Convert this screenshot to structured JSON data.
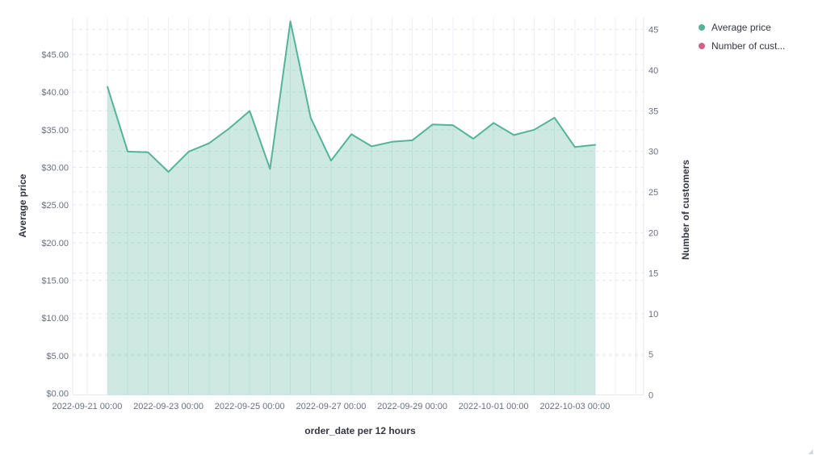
{
  "legend": {
    "items": [
      {
        "label": "Average price",
        "color": "#54B399"
      },
      {
        "label": "Number of cust...",
        "color": "#D36086"
      }
    ]
  },
  "chart_data": {
    "type": "area",
    "title": "",
    "xlabel": "order_date per 12 hours",
    "ylabel_left": "Average price",
    "ylabel_right": "Number of customers",
    "x_bucket_interval": "12 hours",
    "x": [
      "2022-09-21 12:00",
      "2022-09-22 00:00",
      "2022-09-22 12:00",
      "2022-09-23 00:00",
      "2022-09-23 12:00",
      "2022-09-24 00:00",
      "2022-09-24 12:00",
      "2022-09-25 00:00",
      "2022-09-25 12:00",
      "2022-09-26 00:00",
      "2022-09-26 12:00",
      "2022-09-27 00:00",
      "2022-09-27 12:00",
      "2022-09-28 00:00",
      "2022-09-28 12:00",
      "2022-09-29 00:00",
      "2022-09-29 12:00",
      "2022-09-30 00:00",
      "2022-09-30 12:00",
      "2022-10-01 00:00",
      "2022-10-01 12:00",
      "2022-10-02 00:00",
      "2022-10-02 12:00",
      "2022-10-03 00:00",
      "2022-10-03 12:00"
    ],
    "series": [
      {
        "name": "Average price",
        "axis": "left",
        "color": "#54B399",
        "fill_opacity": 0.29,
        "values": [
          40.7,
          32.1,
          32.0,
          29.4,
          32.1,
          33.2,
          35.2,
          37.5,
          29.8,
          49.4,
          36.6,
          30.9,
          34.4,
          32.8,
          33.4,
          33.6,
          35.7,
          35.6,
          33.8,
          35.9,
          34.3,
          35.0,
          36.6,
          32.7,
          33.0
        ]
      },
      {
        "name": "Number of cust...",
        "axis": "right",
        "color": "#D36086",
        "values": []
      }
    ],
    "y_left": {
      "tick_labels": [
        "$0.00",
        "$5.00",
        "$10.00",
        "$15.00",
        "$20.00",
        "$25.00",
        "$30.00",
        "$35.00",
        "$40.00",
        "$45.00"
      ],
      "tick_values": [
        0,
        5,
        10,
        15,
        20,
        25,
        30,
        35,
        40,
        45
      ],
      "min": 0,
      "max": 50
    },
    "y_right": {
      "tick_labels": [
        "0",
        "5",
        "10",
        "15",
        "20",
        "25",
        "30",
        "35",
        "40",
        "45"
      ],
      "tick_values": [
        0,
        5,
        10,
        15,
        20,
        25,
        30,
        35,
        40,
        45
      ],
      "min": 0,
      "max": 46.5
    },
    "x_tick_labels": [
      "2022-09-21 00:00",
      "2022-09-23 00:00",
      "2022-09-25 00:00",
      "2022-09-27 00:00",
      "2022-09-29 00:00",
      "2022-10-01 00:00",
      "2022-10-03 00:00"
    ],
    "grid": {
      "horizontal": "dashed-both-axes",
      "vertical": "solid-every-12h",
      "legend_position": "top-right"
    }
  }
}
